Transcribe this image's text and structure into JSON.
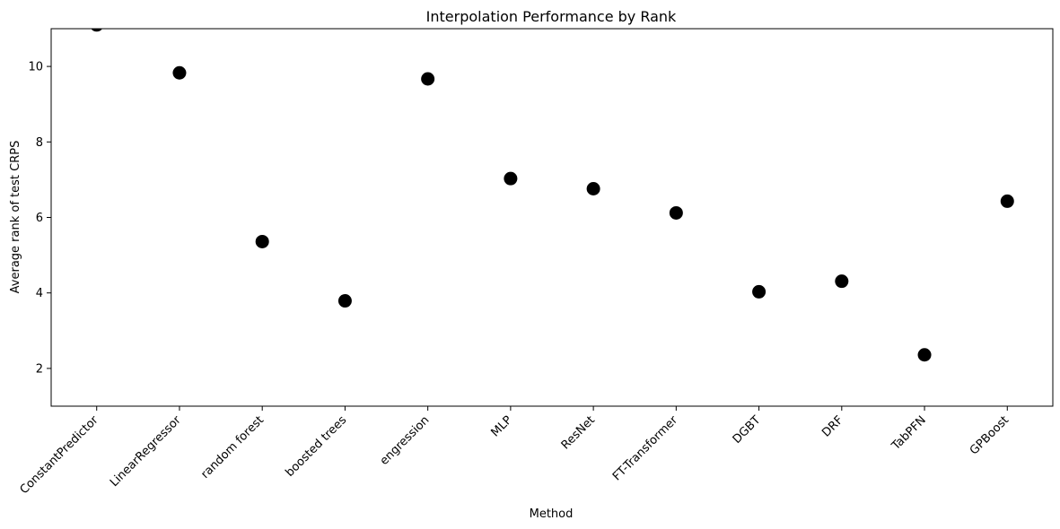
{
  "chart_data": {
    "type": "scatter",
    "title": "Interpolation Performance by Rank",
    "xlabel": "Method",
    "ylabel": "Average rank of test CRPS",
    "categories": [
      "ConstantPredictor",
      "LinearRegressor",
      "random forest",
      "boosted trees",
      "engression",
      "MLP",
      "ResNet",
      "FT-Transformer",
      "DGBT",
      "DRF",
      "TabPFN",
      "GPBoost"
    ],
    "values": [
      11.1,
      9.83,
      5.36,
      3.79,
      9.67,
      7.03,
      6.76,
      6.12,
      4.03,
      4.31,
      2.36,
      6.43
    ],
    "ylim": [
      1,
      11
    ],
    "yticks": [
      2,
      4,
      6,
      8,
      10
    ],
    "grid": false,
    "marker_color": "#000000"
  }
}
